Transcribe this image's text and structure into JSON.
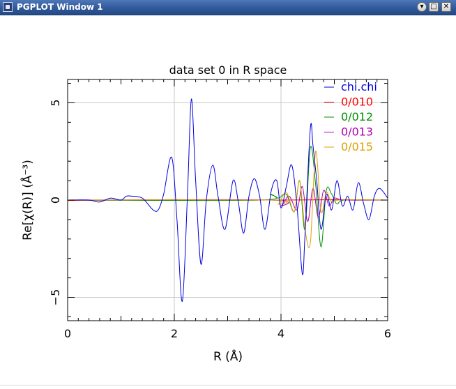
{
  "window": {
    "title": "PGPLOT Window 1",
    "buttons": {
      "minimize": "▾",
      "maximize": "□",
      "close": "✕"
    }
  },
  "chart_data": {
    "type": "line",
    "title": "data set 0 in R space",
    "xlabel": "R (Å)",
    "ylabel": "Re[χ(R)] (Å⁻³)",
    "xlim": [
      0,
      6
    ],
    "ylim": [
      -6.2,
      6.2
    ],
    "xticks": [
      0,
      2,
      4,
      6
    ],
    "yticks": [
      -5,
      0,
      5
    ],
    "grid": true,
    "legend_position": "top-right",
    "series": [
      {
        "name": "chi.chi",
        "color": "#0000e0",
        "x": [
          0,
          0.4,
          0.6,
          0.8,
          1.0,
          1.1,
          1.2,
          1.4,
          1.6,
          1.7,
          1.8,
          1.95,
          2.05,
          2.15,
          2.25,
          2.32,
          2.4,
          2.5,
          2.6,
          2.72,
          2.82,
          2.95,
          3.1,
          3.2,
          3.3,
          3.4,
          3.5,
          3.6,
          3.7,
          3.82,
          3.92,
          4.0,
          4.1,
          4.2,
          4.3,
          4.4,
          4.45,
          4.55,
          4.6,
          4.67,
          4.75,
          4.85,
          4.95,
          5.05,
          5.15,
          5.25,
          5.35,
          5.45,
          5.55,
          5.65,
          5.75,
          5.85,
          6.0
        ],
        "y": [
          0,
          0,
          -0.1,
          0.1,
          0,
          0.2,
          0.2,
          0.1,
          -0.5,
          -0.5,
          0.3,
          2.2,
          -1.0,
          -5.2,
          0.5,
          5.2,
          1.0,
          -3.3,
          0.0,
          1.8,
          0.2,
          -1.5,
          1.0,
          -0.1,
          -1.7,
          0.2,
          1.1,
          0.2,
          -1.5,
          0.5,
          1.0,
          -0.4,
          0.7,
          1.8,
          -0.3,
          -3.8,
          -1.8,
          3.7,
          2.8,
          1.0,
          -1.5,
          0.3,
          -0.5,
          1.0,
          -0.3,
          0.2,
          -0.5,
          0.9,
          -0.2,
          -1.0,
          0.2,
          0.6,
          0.1
        ]
      },
      {
        "name": "0/010",
        "color": "#ff0000",
        "x": [
          0,
          1,
          2,
          3,
          4,
          5,
          6
        ],
        "y": [
          -0.02,
          0,
          0.02,
          0,
          0,
          0.02,
          0
        ]
      },
      {
        "name": "0/012",
        "color": "#009000",
        "x": [
          0,
          3.6,
          3.8,
          3.95,
          4.1,
          4.25,
          4.35,
          4.45,
          4.55,
          4.65,
          4.75,
          4.85,
          4.95,
          5.05,
          5.2,
          6.0
        ],
        "y": [
          0,
          0,
          0.3,
          0.1,
          0.3,
          -0.6,
          1.0,
          -1.5,
          2.7,
          0.8,
          -2.4,
          0.5,
          0.3,
          -0.2,
          0,
          0
        ]
      },
      {
        "name": "0/013",
        "color": "#b000b0",
        "x": [
          0,
          3.8,
          4.0,
          4.15,
          4.3,
          4.4,
          4.5,
          4.6,
          4.7,
          4.8,
          4.9,
          5.0,
          5.2,
          6.0
        ],
        "y": [
          0,
          0,
          -0.3,
          0.2,
          -0.5,
          0.7,
          -1.1,
          0.6,
          -0.9,
          0.5,
          -0.3,
          0.1,
          0,
          0
        ]
      },
      {
        "name": "0/015",
        "color": "#e0a000",
        "x": [
          0,
          3.8,
          3.95,
          4.1,
          4.25,
          4.35,
          4.45,
          4.55,
          4.65,
          4.75,
          4.85,
          4.95,
          5.1,
          6.0
        ],
        "y": [
          0,
          0,
          -0.2,
          0.4,
          -0.6,
          1.0,
          -1.5,
          -2.2,
          2.5,
          -0.6,
          0.4,
          -0.1,
          0,
          0
        ]
      }
    ]
  }
}
